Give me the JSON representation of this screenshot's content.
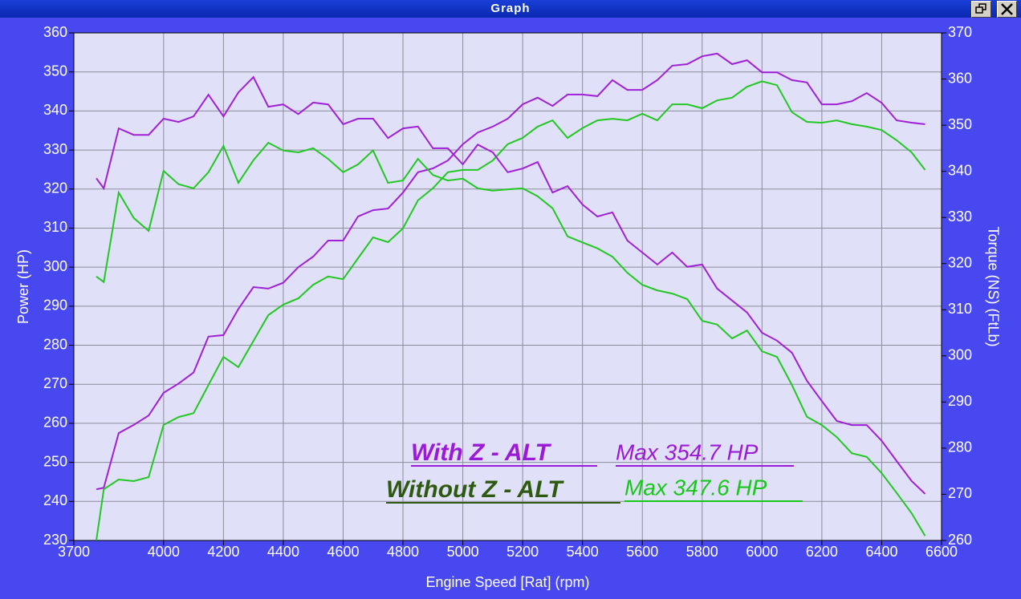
{
  "window": {
    "title": "Graph"
  },
  "chart_data": {
    "type": "line",
    "xlabel": "Engine Speed [Rat] (rpm)",
    "ylabel": "Power (HP)",
    "y2label": "Torque (NS) (FtLb)",
    "xlim": [
      3700,
      6600
    ],
    "xticks": [
      3700,
      4000,
      4200,
      4400,
      4600,
      4800,
      5000,
      5200,
      5400,
      5600,
      5800,
      6000,
      6200,
      6400,
      6600
    ],
    "ylim": [
      230,
      360
    ],
    "yticks": [
      230,
      240,
      250,
      260,
      270,
      280,
      290,
      300,
      310,
      320,
      330,
      340,
      350,
      360
    ],
    "y2lim": [
      260,
      370
    ],
    "y2ticks": [
      260,
      270,
      280,
      290,
      300,
      310,
      320,
      330,
      340,
      350,
      360,
      370
    ],
    "grid": true,
    "background": "#e0e0f8",
    "x": [
      3775,
      3800,
      3850,
      3900,
      3950,
      4000,
      4050,
      4100,
      4150,
      4200,
      4250,
      4300,
      4350,
      4400,
      4450,
      4500,
      4550,
      4600,
      4650,
      4700,
      4750,
      4800,
      4850,
      4900,
      4950,
      5000,
      5050,
      5100,
      5150,
      5200,
      5250,
      5300,
      5350,
      5400,
      5450,
      5500,
      5550,
      5600,
      5650,
      5700,
      5750,
      5800,
      5850,
      5900,
      5950,
      6000,
      6050,
      6100,
      6150,
      6200,
      6250,
      6300,
      6350,
      6400,
      6450,
      6500,
      6545
    ],
    "series": [
      {
        "color": "#a020d8",
        "axis": "y",
        "values": [
          243.1,
          243.5,
          257.5,
          259.6,
          262,
          267.8,
          270.2,
          273,
          282.2,
          282.6,
          289.3,
          294.9,
          294.5,
          296,
          300,
          302.7,
          306.8,
          306.8,
          313,
          314.6,
          315,
          319.1,
          324.3,
          325.3,
          327.3,
          331.5,
          334.5,
          336,
          338,
          341.7,
          343.4,
          341.3,
          344.2,
          344.2,
          343.8,
          347.9,
          345.4,
          345.4,
          347.9,
          351.6,
          352,
          354,
          354.7,
          352,
          353,
          349.9,
          349.9,
          347.9,
          347.3,
          341.7,
          341.7,
          342.5,
          344.6,
          342.1,
          337.6,
          337,
          336.6
        ]
      },
      {
        "color": "#22c822",
        "axis": "y",
        "values": [
          230,
          243.1,
          245.6,
          245.2,
          246.2,
          259.6,
          261.6,
          262.6,
          269.8,
          277,
          274.4,
          281.1,
          287.7,
          290.4,
          292,
          295.5,
          297.6,
          296.9,
          302.3,
          307.6,
          306.4,
          309.9,
          317.1,
          320.2,
          324.3,
          324.9,
          324.9,
          327.3,
          331.5,
          333.1,
          336,
          337.6,
          333.1,
          335.6,
          337.6,
          338,
          337.6,
          339.3,
          337.6,
          341.7,
          341.7,
          340.7,
          342.7,
          343.4,
          346.2,
          347.6,
          346.6,
          339.7,
          337.2,
          337,
          337.6,
          336.6,
          336,
          335.1,
          332.5,
          329.4,
          324.9
        ]
      },
      {
        "color": "#a020d8",
        "axis": "y2",
        "values": [
          338.5,
          336.3,
          349.3,
          347.9,
          347.9,
          351.4,
          350.7,
          351.9,
          356.6,
          351.9,
          357.1,
          360.4,
          354,
          354.5,
          352.4,
          354.9,
          354.5,
          350.2,
          351.4,
          351.4,
          347.2,
          349.3,
          349.7,
          345,
          345,
          341.5,
          345.8,
          344.1,
          339.8,
          340.6,
          342,
          335.4,
          336.8,
          332.8,
          330.2,
          331.1,
          325,
          322.4,
          319.8,
          322.4,
          319.3,
          319.8,
          314.6,
          312,
          309.4,
          305,
          303.3,
          300.7,
          294.6,
          290.2,
          285.9,
          285,
          285,
          281.6,
          277.2,
          272.9,
          270.1
        ]
      },
      {
        "color": "#22c822",
        "axis": "y2",
        "values": [
          317.2,
          316,
          335.4,
          329.9,
          327.1,
          340.1,
          337.2,
          336.3,
          339.8,
          345.5,
          337.5,
          342.4,
          346.2,
          344.5,
          344.1,
          345,
          342.7,
          339.8,
          341.5,
          344.5,
          337.5,
          338,
          342.7,
          339.2,
          338,
          338.4,
          336.3,
          335.8,
          336.1,
          336.3,
          334.6,
          332,
          325.9,
          324.6,
          323.3,
          321.5,
          318,
          315.4,
          314.2,
          313.5,
          312.3,
          307.6,
          306.8,
          303.8,
          305.5,
          301,
          299.8,
          293.7,
          286.8,
          285,
          282.4,
          278.9,
          278.1,
          274.6,
          270.3,
          265.9,
          261
        ]
      }
    ],
    "annotations": [
      {
        "text": "With Z - ALT",
        "color": "#9a1ad8"
      },
      {
        "text": "Max 354.7 HP",
        "color": "#9a1ad8"
      },
      {
        "text": "Without Z - ALT",
        "color": "#2e5a10"
      },
      {
        "text": "Max 347.6 HP",
        "color": "#18c818"
      }
    ]
  }
}
